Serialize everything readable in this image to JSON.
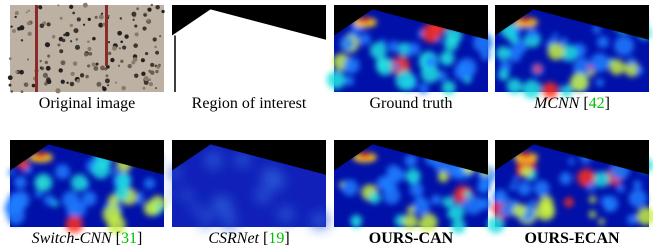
{
  "panels": [
    {
      "caption": [
        {
          "text": "Original image"
        }
      ]
    },
    {
      "caption": [
        {
          "text": "Region of interest"
        }
      ]
    },
    {
      "caption": [
        {
          "text": "Ground truth"
        }
      ]
    },
    {
      "caption": [
        {
          "text": "MCNN",
          "style": "italic"
        },
        {
          "text": " ["
        },
        {
          "text": "42",
          "style": "cite"
        },
        {
          "text": "]"
        }
      ]
    },
    {
      "caption": [
        {
          "text": "Switch-CNN",
          "style": "italic"
        },
        {
          "text": " ["
        },
        {
          "text": "31",
          "style": "cite"
        },
        {
          "text": "]"
        }
      ]
    },
    {
      "caption": [
        {
          "text": "CSRNet",
          "style": "italic"
        },
        {
          "text": " ["
        },
        {
          "text": "19",
          "style": "cite"
        },
        {
          "text": "]"
        }
      ]
    },
    {
      "caption": [
        {
          "text": "OURS-CAN",
          "style": "bold"
        }
      ]
    },
    {
      "caption": [
        {
          "text": "OURS-ECAN",
          "style": "bold"
        }
      ]
    }
  ]
}
